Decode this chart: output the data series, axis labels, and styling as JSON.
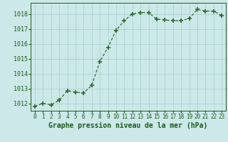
{
  "x": [
    0,
    1,
    2,
    3,
    4,
    5,
    6,
    7,
    8,
    9,
    10,
    11,
    12,
    13,
    14,
    15,
    16,
    17,
    18,
    19,
    20,
    21,
    22,
    23
  ],
  "y": [
    1011.8,
    1012.0,
    1011.9,
    1012.2,
    1012.85,
    1012.75,
    1012.7,
    1013.2,
    1014.8,
    1015.75,
    1016.9,
    1017.55,
    1018.0,
    1018.1,
    1018.1,
    1017.65,
    1017.6,
    1017.55,
    1017.55,
    1017.7,
    1018.3,
    1018.2,
    1018.2,
    1017.9
  ],
  "line_color": "#2d6a2d",
  "marker_color": "#2d6a2d",
  "bg_color": "#cce8e8",
  "grid_color": "#a8cccc",
  "label_color": "#1a5c1a",
  "xlabel": "Graphe pression niveau de la mer (hPa)",
  "ylim_min": 1011.5,
  "ylim_max": 1018.75,
  "yticks": [
    1012,
    1013,
    1014,
    1015,
    1016,
    1017,
    1018
  ],
  "xticks": [
    0,
    1,
    2,
    3,
    4,
    5,
    6,
    7,
    8,
    9,
    10,
    11,
    12,
    13,
    14,
    15,
    16,
    17,
    18,
    19,
    20,
    21,
    22,
    23
  ],
  "tick_fontsize": 5.5,
  "label_fontsize": 7.0,
  "ytick_fontsize": 6.0
}
